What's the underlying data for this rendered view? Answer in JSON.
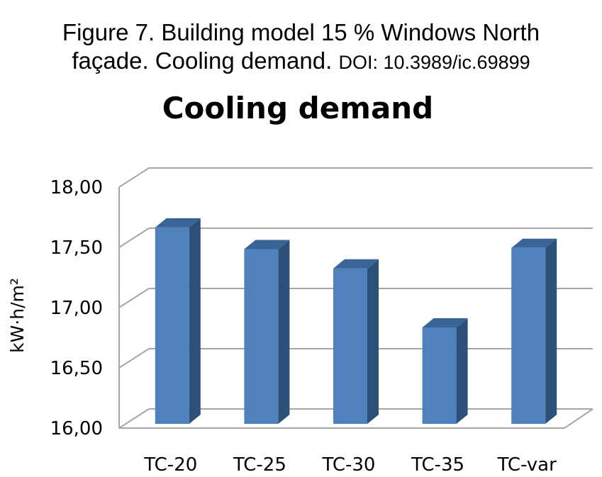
{
  "caption": {
    "line1": "Figure 7. Building model 15 % Windows North",
    "line2": "façade. Cooling demand.",
    "doi": "DOI: 10.3989/ic.69899"
  },
  "chart_data": {
    "type": "bar",
    "title": "Cooling demand",
    "xlabel": "",
    "ylabel": "kW·h/m²",
    "categories": [
      "TC-20",
      "TC-25",
      "TC-30",
      "TC-35",
      "TC-var"
    ],
    "values": [
      17.63,
      17.45,
      17.29,
      16.8,
      17.46
    ],
    "ylim": [
      16.0,
      18.0
    ],
    "yticks": [
      "16,00",
      "16,50",
      "17,00",
      "17,50",
      "18,00"
    ],
    "grid": true,
    "legend": "none",
    "style": "3d-column",
    "colors": {
      "bar_front": "#4f81bd",
      "bar_side": "#2d5079",
      "bar_top": "#3a6397",
      "gridline": "#a6a6a6"
    }
  }
}
